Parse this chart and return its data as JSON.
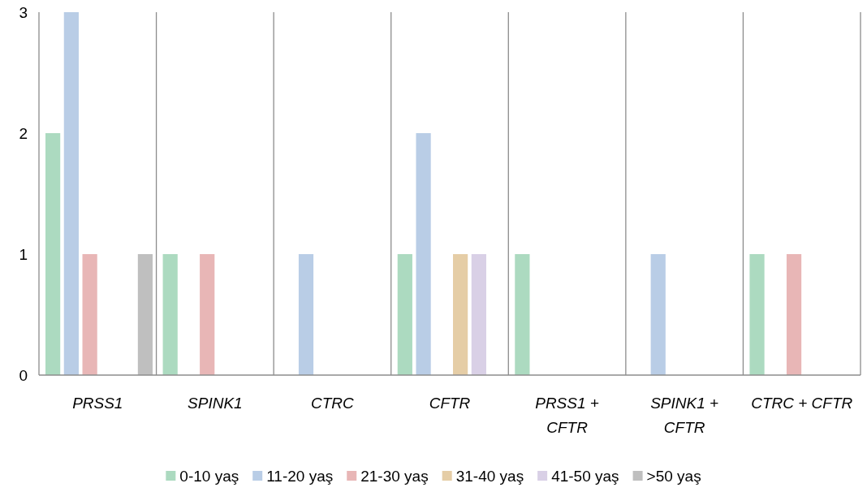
{
  "chart_data": {
    "type": "bar",
    "categories": [
      "PRSS1",
      "SPINK1",
      "CTRC",
      "CFTR",
      "PRSS1 +\nCFTR",
      "SPINK1 +\nCFTR",
      "CTRC +  CFTR"
    ],
    "series": [
      {
        "name": "0-10 yaş",
        "color": "#acdac0",
        "values": [
          2,
          1,
          0,
          1,
          1,
          0,
          1
        ]
      },
      {
        "name": "11-20 yaş",
        "color": "#b9cde6",
        "values": [
          3,
          0,
          1,
          2,
          0,
          1,
          0
        ]
      },
      {
        "name": "21-30 yaş",
        "color": "#e8b6b6",
        "values": [
          1,
          1,
          0,
          0,
          0,
          0,
          1
        ]
      },
      {
        "name": "31-40 yaş",
        "color": "#e5cda6",
        "values": [
          0,
          0,
          0,
          1,
          0,
          0,
          0
        ]
      },
      {
        "name": "41-50 yaş",
        "color": "#d9d0e6",
        "values": [
          0,
          0,
          0,
          1,
          0,
          0,
          0
        ]
      },
      {
        "name": ">50 yaş",
        "color": "#bfbfbf",
        "values": [
          1,
          0,
          0,
          0,
          0,
          0,
          0
        ]
      }
    ],
    "ylim": [
      0,
      3
    ],
    "yticks": [
      0,
      1,
      2,
      3
    ],
    "grid": "x",
    "legend": "bottom"
  }
}
